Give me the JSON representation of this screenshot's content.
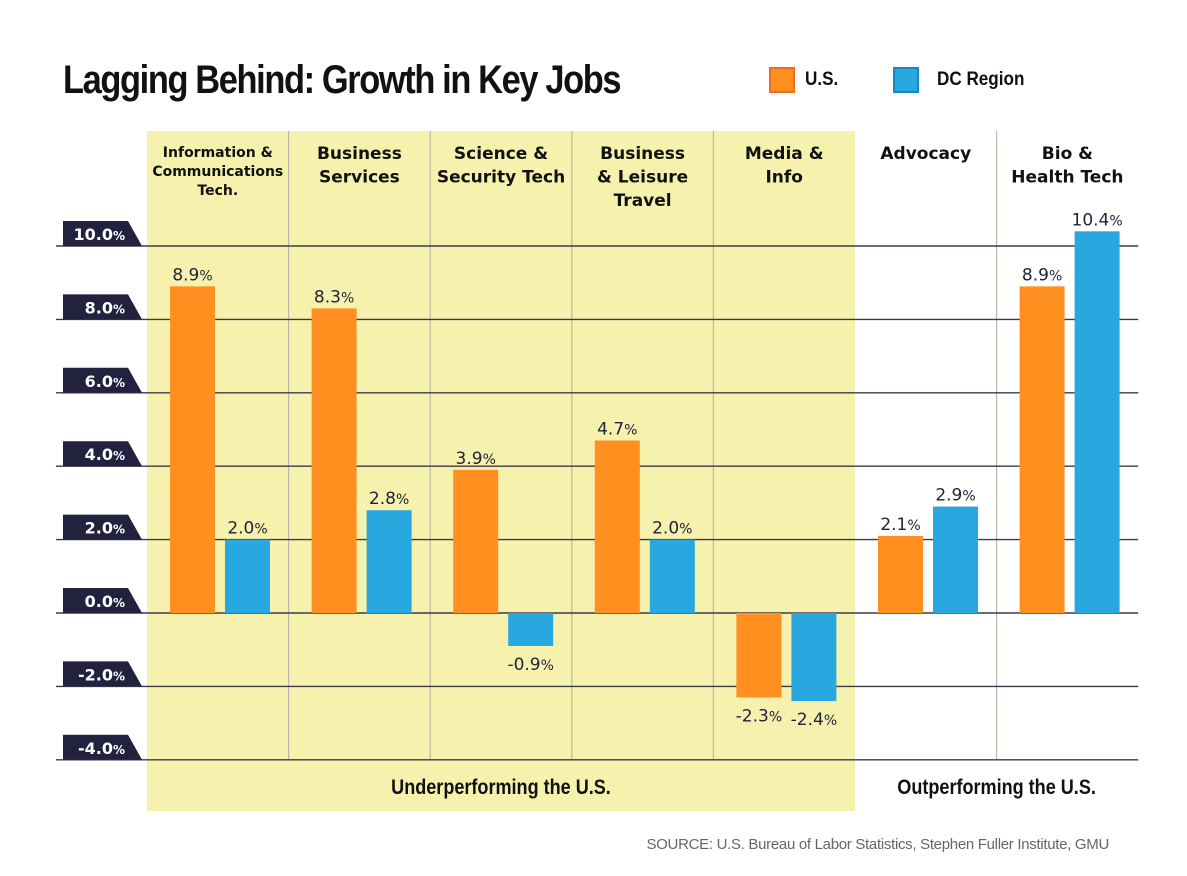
{
  "chart_data": {
    "type": "bar",
    "title": "Lagging Behind: Growth in Key Jobs",
    "xlabel": "",
    "ylabel": "",
    "ylim": [
      -4.0,
      10.0
    ],
    "yticks": [
      10.0,
      8.0,
      6.0,
      4.0,
      2.0,
      0.0,
      -2.0,
      -4.0
    ],
    "ytick_labels": [
      "10.0%",
      "8.0%",
      "6.0%",
      "4.0%",
      "2.0%",
      "0.0%",
      "-2.0%",
      "-4.0%"
    ],
    "grid": true,
    "legend_position": "top-right",
    "categories": [
      [
        "Information &",
        "Communications",
        "Tech."
      ],
      [
        "Business",
        "Services"
      ],
      [
        "Science &",
        "Security Tech"
      ],
      [
        "Business",
        "& Leisure",
        "Travel"
      ],
      [
        "Media &",
        "Info"
      ],
      [
        "Advocacy"
      ],
      [
        "Bio &",
        "Health Tech"
      ]
    ],
    "series": [
      {
        "name": "U.S.",
        "color": "#FF8F1F",
        "values": [
          8.9,
          8.3,
          3.9,
          4.7,
          -2.3,
          2.1,
          8.9
        ]
      },
      {
        "name": "DC Region",
        "color": "#29A8E0",
        "values": [
          2.0,
          2.8,
          -0.9,
          2.0,
          -2.4,
          2.9,
          10.4
        ]
      }
    ],
    "value_labels": {
      "U.S.": [
        "8.9%",
        "8.3%",
        "3.9%",
        "4.7%",
        "-2.3%",
        "2.1%",
        "8.9%"
      ],
      "DC Region": [
        "2.0%",
        "2.8%",
        "-0.9%",
        "2.0%",
        "-2.4%",
        "2.9%",
        "10.4%"
      ]
    },
    "groups": [
      {
        "label": "Underperforming the U.S.",
        "categories": [
          0,
          1,
          2,
          3,
          4
        ],
        "highlight_color": "#F6F2AD"
      },
      {
        "label": "Outperforming the U.S.",
        "categories": [
          5,
          6
        ],
        "highlight_color": "#FFFFFF"
      }
    ],
    "source": "SOURCE: U.S. Bureau of Labor Statistics, Stephen Fuller Institute, GMU"
  },
  "legend": [
    {
      "label": "U.S.",
      "color": "#FF8F1F",
      "border": "#F26B21"
    },
    {
      "label": "DC Region",
      "color": "#29A8E0",
      "border": "#1B86C4"
    }
  ],
  "colors": {
    "tick_badge": "#22223F",
    "gridline": "#3a3a4a",
    "divider": "#b8b8a8"
  }
}
